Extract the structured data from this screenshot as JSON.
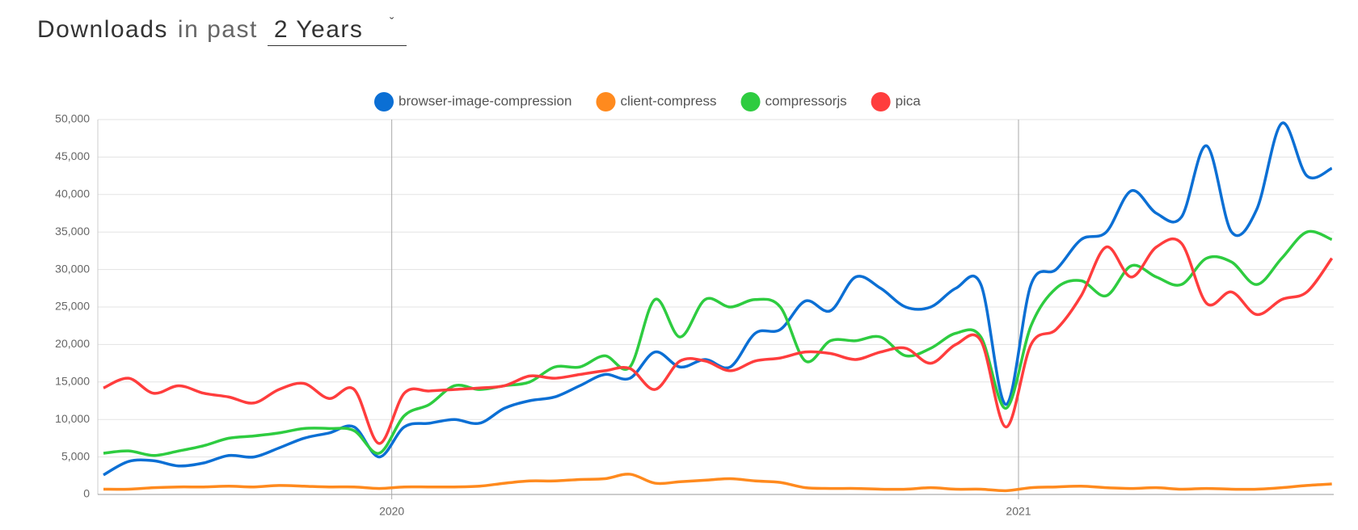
{
  "header": {
    "title": "Downloads",
    "subtitle": "in past",
    "period": "2 Years"
  },
  "chart_data": {
    "type": "line",
    "x": [
      2019.54,
      2019.58,
      2019.62,
      2019.66,
      2019.7,
      2019.74,
      2019.78,
      2019.82,
      2019.86,
      2019.9,
      2019.94,
      2019.98,
      2020.02,
      2020.06,
      2020.1,
      2020.14,
      2020.18,
      2020.22,
      2020.26,
      2020.3,
      2020.34,
      2020.38,
      2020.42,
      2020.46,
      2020.5,
      2020.54,
      2020.58,
      2020.62,
      2020.66,
      2020.7,
      2020.74,
      2020.78,
      2020.82,
      2020.86,
      2020.9,
      2020.94,
      2020.98,
      2021.02,
      2021.06,
      2021.1,
      2021.14,
      2021.18,
      2021.22,
      2021.26,
      2021.3,
      2021.34,
      2021.38,
      2021.42,
      2021.46,
      2021.5
    ],
    "series": [
      {
        "name": "browser-image-compression",
        "color": "#0b6fd4",
        "values": [
          2600,
          4400,
          4500,
          3800,
          4200,
          5200,
          5000,
          6200,
          7500,
          8200,
          9000,
          5000,
          9000,
          9500,
          10000,
          9500,
          11500,
          12500,
          13000,
          14500,
          16000,
          15500,
          19000,
          17000,
          18000,
          17000,
          21500,
          22000,
          25800,
          24500,
          29000,
          27500,
          25000,
          25000,
          27500,
          28000,
          12000,
          28000,
          30000,
          34000,
          35000,
          40500,
          37500,
          37000,
          46500,
          35000,
          38000,
          49500,
          42500,
          43500
        ]
      },
      {
        "name": "client-compress",
        "color": "#ff8a1e",
        "values": [
          700,
          700,
          900,
          1000,
          1000,
          1100,
          1000,
          1200,
          1100,
          1000,
          1000,
          800,
          1000,
          1000,
          1000,
          1100,
          1500,
          1800,
          1800,
          2000,
          2100,
          2700,
          1500,
          1700,
          1900,
          2100,
          1800,
          1600,
          900,
          800,
          800,
          700,
          700,
          900,
          700,
          700,
          500,
          900,
          1000,
          1100,
          900,
          800,
          900,
          700,
          800,
          700,
          700,
          900,
          1200,
          1400
        ]
      },
      {
        "name": "compressorjs",
        "color": "#2ecc40",
        "values": [
          5500,
          5800,
          5200,
          5800,
          6500,
          7500,
          7800,
          8200,
          8800,
          8800,
          8500,
          5500,
          10500,
          12000,
          14500,
          14000,
          14500,
          15000,
          17000,
          17000,
          18500,
          17000,
          26000,
          21000,
          26000,
          25000,
          26000,
          25000,
          17800,
          20500,
          20500,
          21000,
          18500,
          19500,
          21500,
          21000,
          11500,
          22500,
          27500,
          28500,
          26500,
          30500,
          29000,
          28000,
          31500,
          31000,
          28000,
          31500,
          35000,
          34000
        ]
      },
      {
        "name": "pica",
        "color": "#ff3d3d",
        "values": [
          14200,
          15500,
          13500,
          14500,
          13500,
          13000,
          12200,
          14000,
          14800,
          12800,
          14000,
          6800,
          13500,
          13800,
          14000,
          14200,
          14500,
          15800,
          15500,
          16000,
          16500,
          16800,
          14000,
          17800,
          17800,
          16500,
          17800,
          18200,
          19000,
          18800,
          18000,
          19000,
          19500,
          17500,
          20000,
          20500,
          9000,
          20000,
          22000,
          26500,
          33000,
          29000,
          33000,
          33500,
          25500,
          27000,
          24000,
          26000,
          27000,
          31500
        ]
      }
    ],
    "xlim": [
      2019.531,
      2021.503
    ],
    "xticks": [
      2020,
      2021
    ],
    "ylim": [
      0,
      50000
    ],
    "yticks": [
      0,
      {
        "value": 5000,
        "label": "5,000"
      },
      {
        "value": 10000,
        "label": "10,000"
      },
      {
        "value": 15000,
        "label": "15,000"
      },
      {
        "value": 20000,
        "label": "20,000"
      },
      {
        "value": 25000,
        "label": "25,000"
      },
      {
        "value": 30000,
        "label": "30,000"
      },
      {
        "value": 35000,
        "label": "35,000"
      },
      {
        "value": 40000,
        "label": "40,000"
      },
      {
        "value": 45000,
        "label": "45,000"
      },
      {
        "value": 50000,
        "label": "50,000"
      }
    ],
    "grid": true
  }
}
